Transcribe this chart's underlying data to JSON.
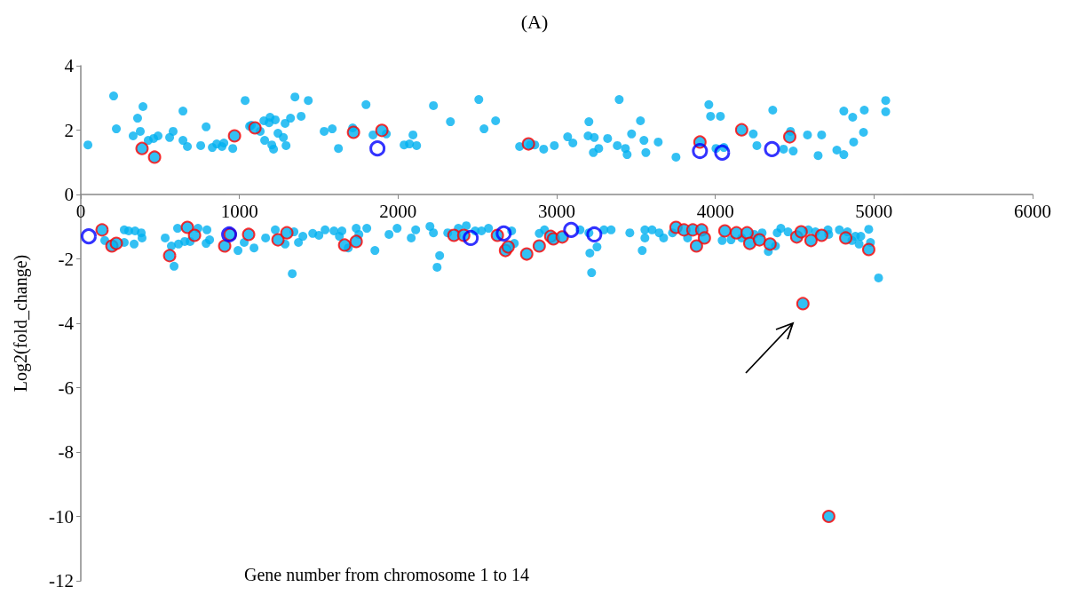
{
  "chart_data": {
    "type": "scatter",
    "title": "(A)",
    "xlabel": "Gene number from chromosome 1 to 14",
    "ylabel": "Log2(fold_change)",
    "xlim": [
      0,
      6000
    ],
    "xticks": [
      0,
      1000,
      2000,
      3000,
      4000,
      5000,
      6000
    ],
    "ylim": [
      -12,
      4
    ],
    "yticks": [
      -12,
      -10,
      -8,
      -6,
      -4,
      -2,
      0,
      2,
      4
    ],
    "marker": "circle",
    "series": [
      {
        "color": "#00b0f0",
        "x": [
          45,
          207,
          224,
          330,
          358,
          375,
          392,
          425,
          459,
          487,
          560,
          582,
          644,
          644,
          672,
          756,
          790,
          829,
          857,
          890,
          902,
          958,
          1036,
          1064,
          1075,
          1131,
          1154,
          1159,
          1187,
          1193,
          1204,
          1215,
          1226,
          1243,
          1277,
          1288,
          1294,
          1322,
          1350,
          1389,
          1434,
          1534,
          1585,
          1624,
          1714,
          1798,
          1842,
          1926,
          2038,
          2072,
          2094,
          2117,
          2223,
          2330,
          2509,
          2542,
          2615,
          2766,
          2834,
          2862,
          2918,
          2985,
          3069,
          3102,
          3203,
          3198,
          3237,
          3231,
          3265,
          3321,
          3394,
          3382,
          3433,
          3444,
          3472,
          3528,
          3550,
          3562,
          3640,
          3752,
          3959,
          3970,
          4032,
          4004,
          4054,
          4239,
          4262,
          4362,
          4430,
          4474,
          4491,
          4581,
          4648,
          4670,
          4766,
          4810,
          4810,
          4866,
          4939,
          4872,
          4934,
          5074,
          5074,
          151,
          274,
          302,
          342,
          381,
          386,
          274,
          336,
          532,
          571,
          588,
          610,
          616,
          655,
          689,
          739,
          795,
          790,
          812,
          991,
          1030,
          1092,
          1165,
          1226,
          1288,
          1333,
          1344,
          1372,
          1400,
          1462,
          1501,
          1540,
          1596,
          1630,
          1646,
          1686,
          1736,
          1753,
          1803,
          1854,
          1943,
          1994,
          2083,
          2111,
          2201,
          2223,
          2246,
          2262,
          2313,
          2380,
          2430,
          2486,
          2526,
          2570,
          2716,
          2733,
          2923,
          2890,
          3147,
          3203,
          3209,
          3220,
          3254,
          3298,
          3343,
          3461,
          3539,
          3556,
          3556,
          3601,
          3646,
          3674,
          3730,
          3825,
          4043,
          4099,
          4166,
          4245,
          4295,
          4334,
          4379,
          4390,
          4413,
          4458,
          4586,
          4631,
          4710,
          4715,
          4782,
          4833,
          4861,
          4883,
          4917,
          4906,
          4978,
          4967,
          5029
        ],
        "values": [
          1.54,
          3.06,
          2.04,
          1.82,
          2.37,
          1.96,
          2.73,
          1.68,
          1.74,
          1.82,
          1.77,
          1.96,
          1.68,
          2.59,
          1.49,
          1.52,
          2.1,
          1.46,
          1.57,
          1.49,
          1.6,
          1.43,
          2.92,
          2.12,
          2.15,
          1.96,
          2.29,
          1.68,
          2.23,
          2.4,
          1.54,
          1.41,
          2.32,
          1.9,
          1.77,
          2.21,
          1.52,
          2.37,
          3.03,
          2.43,
          2.92,
          1.96,
          2.04,
          1.43,
          2.07,
          2.79,
          1.85,
          1.88,
          1.54,
          1.57,
          1.85,
          1.52,
          2.76,
          2.26,
          2.95,
          2.04,
          2.29,
          1.49,
          1.54,
          1.54,
          1.41,
          1.52,
          1.79,
          1.6,
          2.26,
          1.82,
          1.77,
          1.3,
          1.43,
          1.74,
          2.95,
          1.52,
          1.43,
          1.24,
          1.88,
          2.29,
          1.68,
          1.3,
          1.63,
          1.16,
          2.79,
          2.43,
          2.43,
          1.43,
          1.46,
          1.88,
          1.52,
          2.62,
          1.41,
          1.96,
          1.35,
          1.85,
          1.21,
          1.85,
          1.38,
          1.24,
          2.59,
          2.4,
          2.62,
          1.63,
          1.93,
          2.92,
          2.57,
          -1.43,
          -1.1,
          -1.13,
          -1.13,
          -1.19,
          -1.35,
          -1.49,
          -1.54,
          -1.35,
          -1.6,
          -2.23,
          -1.05,
          -1.54,
          -1.46,
          -1.46,
          -1.05,
          -1.1,
          -1.52,
          -1.41,
          -1.74,
          -1.49,
          -1.66,
          -1.35,
          -1.1,
          -1.54,
          -2.46,
          -1.16,
          -1.49,
          -1.3,
          -1.21,
          -1.27,
          -1.1,
          -1.13,
          -1.3,
          -1.13,
          -1.66,
          -1.05,
          -1.24,
          -1.05,
          -1.74,
          -1.24,
          -1.05,
          -1.35,
          -1.1,
          -0.99,
          -1.19,
          -2.26,
          -1.9,
          -1.19,
          -1.05,
          -0.97,
          -1.13,
          -1.13,
          -1.05,
          -1.13,
          -1.52,
          -1.1,
          -1.21,
          -1.1,
          -1.19,
          -1.82,
          -2.43,
          -1.63,
          -1.1,
          -1.1,
          -1.19,
          -1.74,
          -1.35,
          -1.1,
          -1.1,
          -1.19,
          -1.35,
          -1.19,
          -1.35,
          -1.43,
          -1.41,
          -1.35,
          -1.24,
          -1.19,
          -1.77,
          -1.6,
          -1.19,
          -1.05,
          -1.16,
          -1.1,
          -1.16,
          -1.1,
          -1.24,
          -1.1,
          -1.16,
          -1.43,
          -1.3,
          -1.3,
          -1.54,
          -1.49,
          -1.08,
          -2.59
        ]
      },
      {
        "color": "#ff0000",
        "x": [
          386,
          465,
          969,
          1098,
          1719,
          1898,
          2822,
          3903,
          4166,
          4469,
          134,
          196,
          224,
          560,
          672,
          717,
          907,
          941,
          1058,
          1243,
          1299,
          1663,
          1736,
          2352,
          2414,
          2626,
          2677,
          2694,
          2811,
          2890,
          2962,
          2979,
          3035,
          3752,
          3802,
          3858,
          3914,
          3931,
          3881,
          4060,
          4133,
          4200,
          4217,
          4278,
          4345,
          4513,
          4541,
          4603,
          4670,
          4822,
          4967,
          4552,
          4715
        ],
        "values": [
          1.43,
          1.16,
          1.82,
          2.07,
          1.93,
          1.99,
          1.57,
          1.63,
          2.01,
          1.79,
          -1.1,
          -1.6,
          -1.52,
          -1.9,
          -1.02,
          -1.27,
          -1.6,
          -1.24,
          -1.24,
          -1.41,
          -1.19,
          -1.57,
          -1.46,
          -1.27,
          -1.27,
          -1.27,
          -1.74,
          -1.63,
          -1.85,
          -1.6,
          -1.3,
          -1.38,
          -1.32,
          -1.02,
          -1.1,
          -1.1,
          -1.1,
          -1.35,
          -1.6,
          -1.13,
          -1.19,
          -1.19,
          -1.52,
          -1.41,
          -1.54,
          -1.32,
          -1.16,
          -1.43,
          -1.27,
          -1.35,
          -1.71,
          -3.39,
          -10
        ]
      },
      {
        "color": "#0000ff",
        "x": [
          1870,
          3903,
          4043,
          4357,
          50,
          935,
          2458,
          2666,
          3091,
          3237
        ],
        "values": [
          1.43,
          1.35,
          1.3,
          1.41,
          -1.3,
          -1.24,
          -1.35,
          -1.21,
          -1.1,
          -1.24
        ]
      }
    ]
  }
}
